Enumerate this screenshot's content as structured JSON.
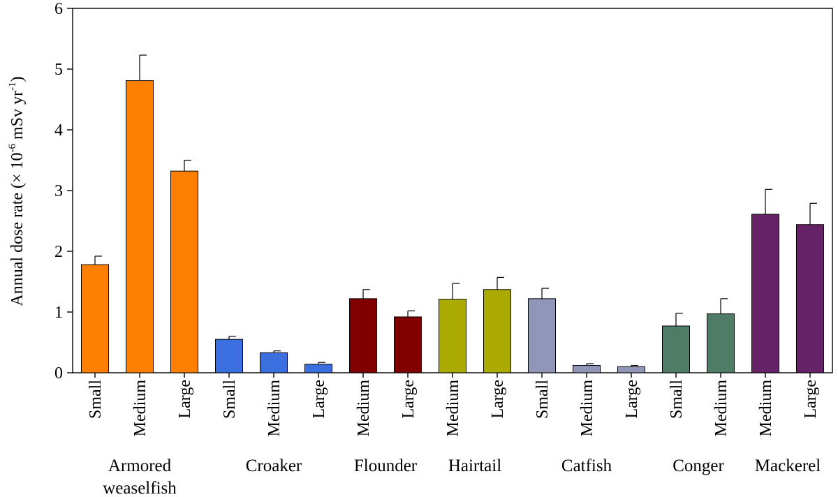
{
  "chart_data": {
    "type": "bar",
    "ylabel": "Annual dose rate (× 10⁻⁶ mSv yr⁻¹)",
    "ylabel_parts": [
      "Annual dose rate (× 10",
      "-6",
      " mSv yr",
      "-1",
      ")"
    ],
    "ylim": [
      0,
      6
    ],
    "yticks": [
      "0",
      "1",
      "2",
      "3",
      "4",
      "5",
      "6"
    ],
    "groups": [
      {
        "name": "Armored weaselfish",
        "label_lines": [
          "Armored",
          "weaselfish"
        ],
        "color": "#FF8000",
        "bars": [
          {
            "category": "Small",
            "value": 1.78,
            "error": 0.14
          },
          {
            "category": "Medium",
            "value": 4.81,
            "error": 0.42
          },
          {
            "category": "Large",
            "value": 3.32,
            "error": 0.18
          }
        ]
      },
      {
        "name": "Croaker",
        "label_lines": [
          "Croaker"
        ],
        "color": "#3B6FE0",
        "bars": [
          {
            "category": "Small",
            "value": 0.55,
            "error": 0.05
          },
          {
            "category": "Medium",
            "value": 0.33,
            "error": 0.03
          },
          {
            "category": "Large",
            "value": 0.14,
            "error": 0.03
          }
        ]
      },
      {
        "name": "Flounder",
        "label_lines": [
          "Flounder"
        ],
        "color": "#800000",
        "bars": [
          {
            "category": "Medium",
            "value": 1.22,
            "error": 0.15
          },
          {
            "category": "Large",
            "value": 0.92,
            "error": 0.1
          }
        ]
      },
      {
        "name": "Hairtail",
        "label_lines": [
          "Hairtail"
        ],
        "color": "#AAAA00",
        "bars": [
          {
            "category": "Medium",
            "value": 1.21,
            "error": 0.26
          },
          {
            "category": "Large",
            "value": 1.37,
            "error": 0.2
          }
        ]
      },
      {
        "name": "Catfish",
        "label_lines": [
          "Catfish"
        ],
        "color": "#9196B8",
        "bars": [
          {
            "category": "Small",
            "value": 1.22,
            "error": 0.17
          },
          {
            "category": "Medium",
            "value": 0.12,
            "error": 0.03
          },
          {
            "category": "Large",
            "value": 0.1,
            "error": 0.02
          }
        ]
      },
      {
        "name": "Conger",
        "label_lines": [
          "Conger"
        ],
        "color": "#4E7C66",
        "bars": [
          {
            "category": "Small",
            "value": 0.77,
            "error": 0.21
          },
          {
            "category": "Medium",
            "value": 0.97,
            "error": 0.25
          }
        ]
      },
      {
        "name": "Mackerel",
        "label_lines": [
          "Mackerel"
        ],
        "color": "#662266",
        "bars": [
          {
            "category": "Medium",
            "value": 2.61,
            "error": 0.41
          },
          {
            "category": "Large",
            "value": 2.44,
            "error": 0.35
          }
        ]
      }
    ]
  }
}
